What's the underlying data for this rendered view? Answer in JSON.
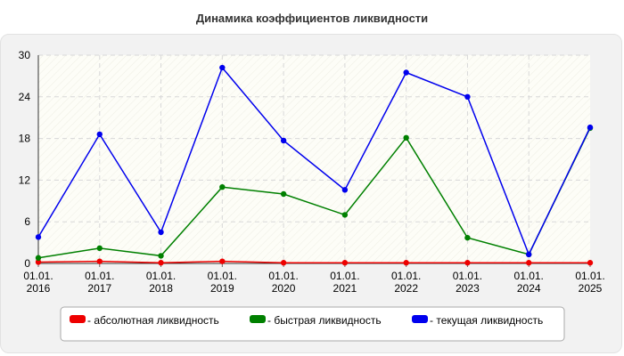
{
  "chart_data": {
    "type": "line",
    "title": "Динамика коэффициентов ликвидности",
    "xlabel": "",
    "ylabel": "",
    "categories": [
      [
        "01.01.",
        "2016"
      ],
      [
        "01.01.",
        "2017"
      ],
      [
        "01.01.",
        "2018"
      ],
      [
        "01.01.",
        "2019"
      ],
      [
        "01.01.",
        "2020"
      ],
      [
        "01.01.",
        "2021"
      ],
      [
        "01.01.",
        "2022"
      ],
      [
        "01.01.",
        "2023"
      ],
      [
        "01.01.",
        "2024"
      ],
      [
        "01.01.",
        "2025"
      ]
    ],
    "ylim": [
      0,
      30
    ],
    "yticks": [
      0,
      6,
      12,
      18,
      24,
      30
    ],
    "grid": true,
    "legend_position": "bottom",
    "series": [
      {
        "name": "- абсолютная ликвидность",
        "color": "#ee0000",
        "values": [
          0.2,
          0.3,
          0.1,
          0.3,
          0.1,
          0.1,
          0.1,
          0.1,
          0.1,
          0.1
        ]
      },
      {
        "name": "- быстрая ликвидность",
        "color": "#008000",
        "values": [
          0.8,
          2.2,
          1.1,
          11.0,
          10.0,
          7.0,
          18.1,
          3.7,
          1.3,
          19.5
        ]
      },
      {
        "name": "- текущая ликвидность",
        "color": "#0000ee",
        "values": [
          3.8,
          18.6,
          4.5,
          28.2,
          17.7,
          10.6,
          27.5,
          24.0,
          1.3,
          19.6
        ]
      }
    ]
  }
}
